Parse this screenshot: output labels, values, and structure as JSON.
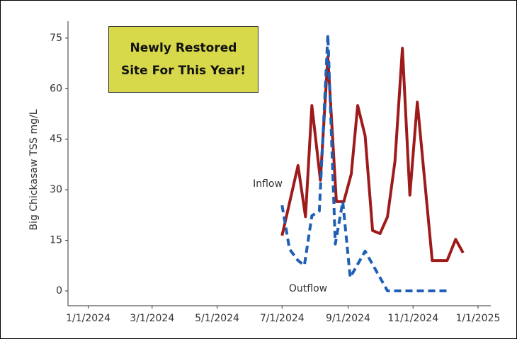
{
  "chart_data": {
    "type": "line",
    "ylabel": "Big Chickasaw TSS mg/L",
    "note_lines": [
      "Newly Restored",
      "Site For This Year!"
    ],
    "series": [
      {
        "name": "Inflow",
        "color": "#9e1b1b",
        "dash": false,
        "x": [
          "7/1/2024",
          "7/16/2024",
          "7/23/2024",
          "7/29/2024",
          "8/6/2024",
          "8/13/2024",
          "8/21/2024",
          "8/28/2024",
          "9/4/2024",
          "9/10/2024",
          "9/17/2024",
          "9/24/2024",
          "10/1/2024",
          "10/8/2024",
          "10/15/2024",
          "10/22/2024",
          "10/29/2024",
          "11/5/2024",
          "11/19/2024",
          "12/3/2024",
          "12/11/2024",
          "12/18/2024"
        ],
        "values": [
          16.4,
          37.2,
          22,
          55,
          32.8,
          69.5,
          26.5,
          26.5,
          34.7,
          55,
          46,
          17.9,
          17,
          22,
          38.4,
          72,
          28.4,
          56,
          9,
          9,
          15.3,
          11.3
        ]
      },
      {
        "name": "Outflow",
        "color": "#1f5fb4",
        "dash": true,
        "x": [
          "7/1/2024",
          "7/8/2024",
          "7/16/2024",
          "7/22/2024",
          "7/29/2024",
          "8/5/2024",
          "8/13/2024",
          "8/20/2024",
          "8/27/2024",
          "9/3/2024",
          "9/17/2024",
          "10/8/2024",
          "12/3/2024"
        ],
        "values": [
          25.4,
          12.4,
          9,
          7.6,
          22.3,
          23.7,
          76,
          13.9,
          26.5,
          4,
          11.8,
          0,
          0
        ]
      }
    ],
    "xlim": [
      "12/13/2023",
      "1/13/2025"
    ],
    "xticks": [
      "1/1/2024",
      "3/1/2024",
      "5/1/2024",
      "7/1/2024",
      "9/1/2024",
      "11/1/2024",
      "1/1/2025"
    ],
    "ylim": [
      -4.4,
      80
    ],
    "yticks": [
      0,
      15,
      30,
      45,
      60,
      75
    ]
  }
}
